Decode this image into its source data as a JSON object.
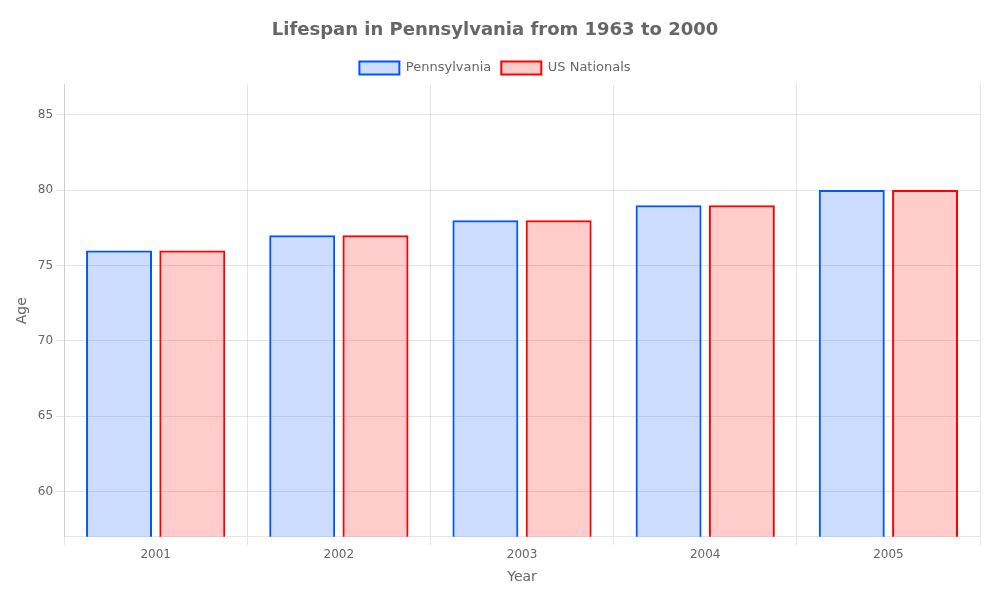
{
  "chart_data": {
    "type": "bar",
    "title": "Lifespan in Pennsylvania from 1963 to 2000",
    "x_label": "Year",
    "y_label": "Age",
    "categories": [
      "2001",
      "2002",
      "2003",
      "2004",
      "2005"
    ],
    "series": [
      {
        "name": "Pennsylvania",
        "color": "#0055ff",
        "values": [
          76,
          77,
          78,
          79,
          80
        ]
      },
      {
        "name": "US Nationals",
        "color": "#ff0000",
        "values": [
          76,
          77,
          78,
          79,
          80
        ]
      }
    ],
    "ylim": [
      57,
      87
    ],
    "yticks": [
      60,
      65,
      70,
      75,
      80,
      85
    ],
    "grid": true,
    "legend": "top"
  }
}
